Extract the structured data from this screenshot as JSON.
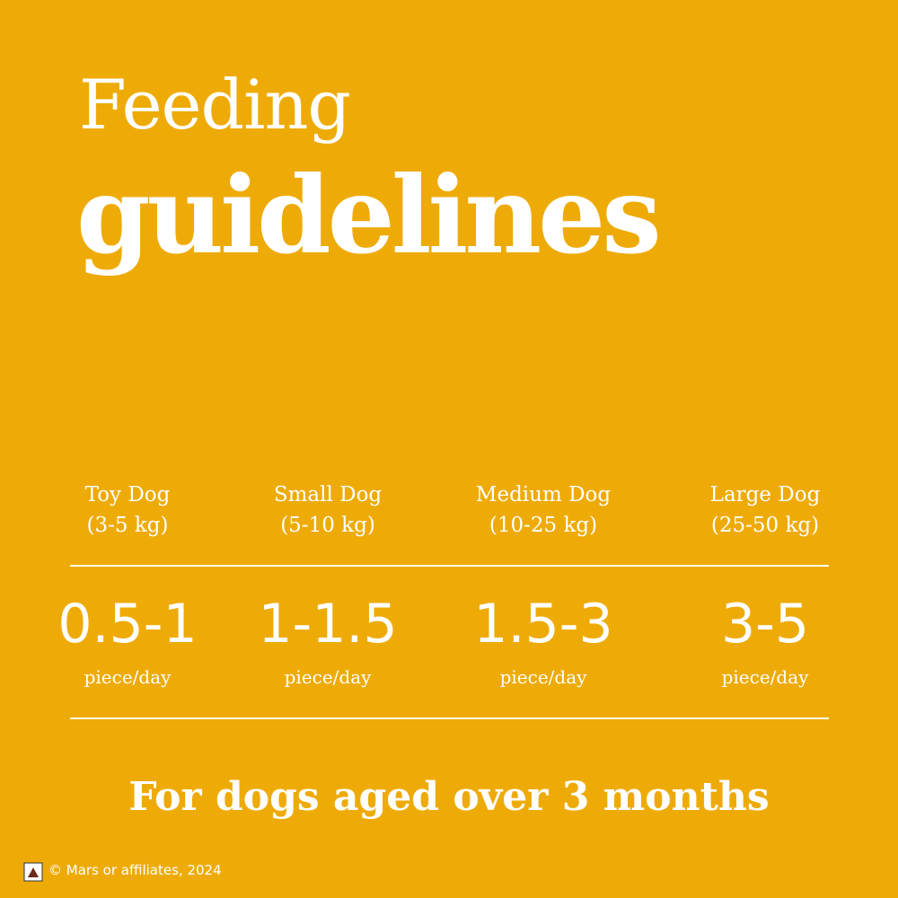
{
  "header": {
    "title_line1": "Feeding",
    "title_line2": "guidelines"
  },
  "columns": [
    {
      "name": "Toy Dog",
      "weight": "(3-5 kg)",
      "amount": "0.5-1",
      "unit": "piece/day"
    },
    {
      "name": "Small Dog",
      "weight": "(5-10 kg)",
      "amount": "1-1.5",
      "unit": "piece/day"
    },
    {
      "name": "Medium Dog",
      "weight": "(10-25 kg)",
      "amount": "1.5-3",
      "unit": "piece/day"
    },
    {
      "name": "Large Dog",
      "weight": "(25-50 kg)",
      "amount": "3-5",
      "unit": "piece/day"
    }
  ],
  "footer": {
    "note": "For dogs aged over 3 months",
    "copyright": "© Mars or affiliates, 2024"
  }
}
